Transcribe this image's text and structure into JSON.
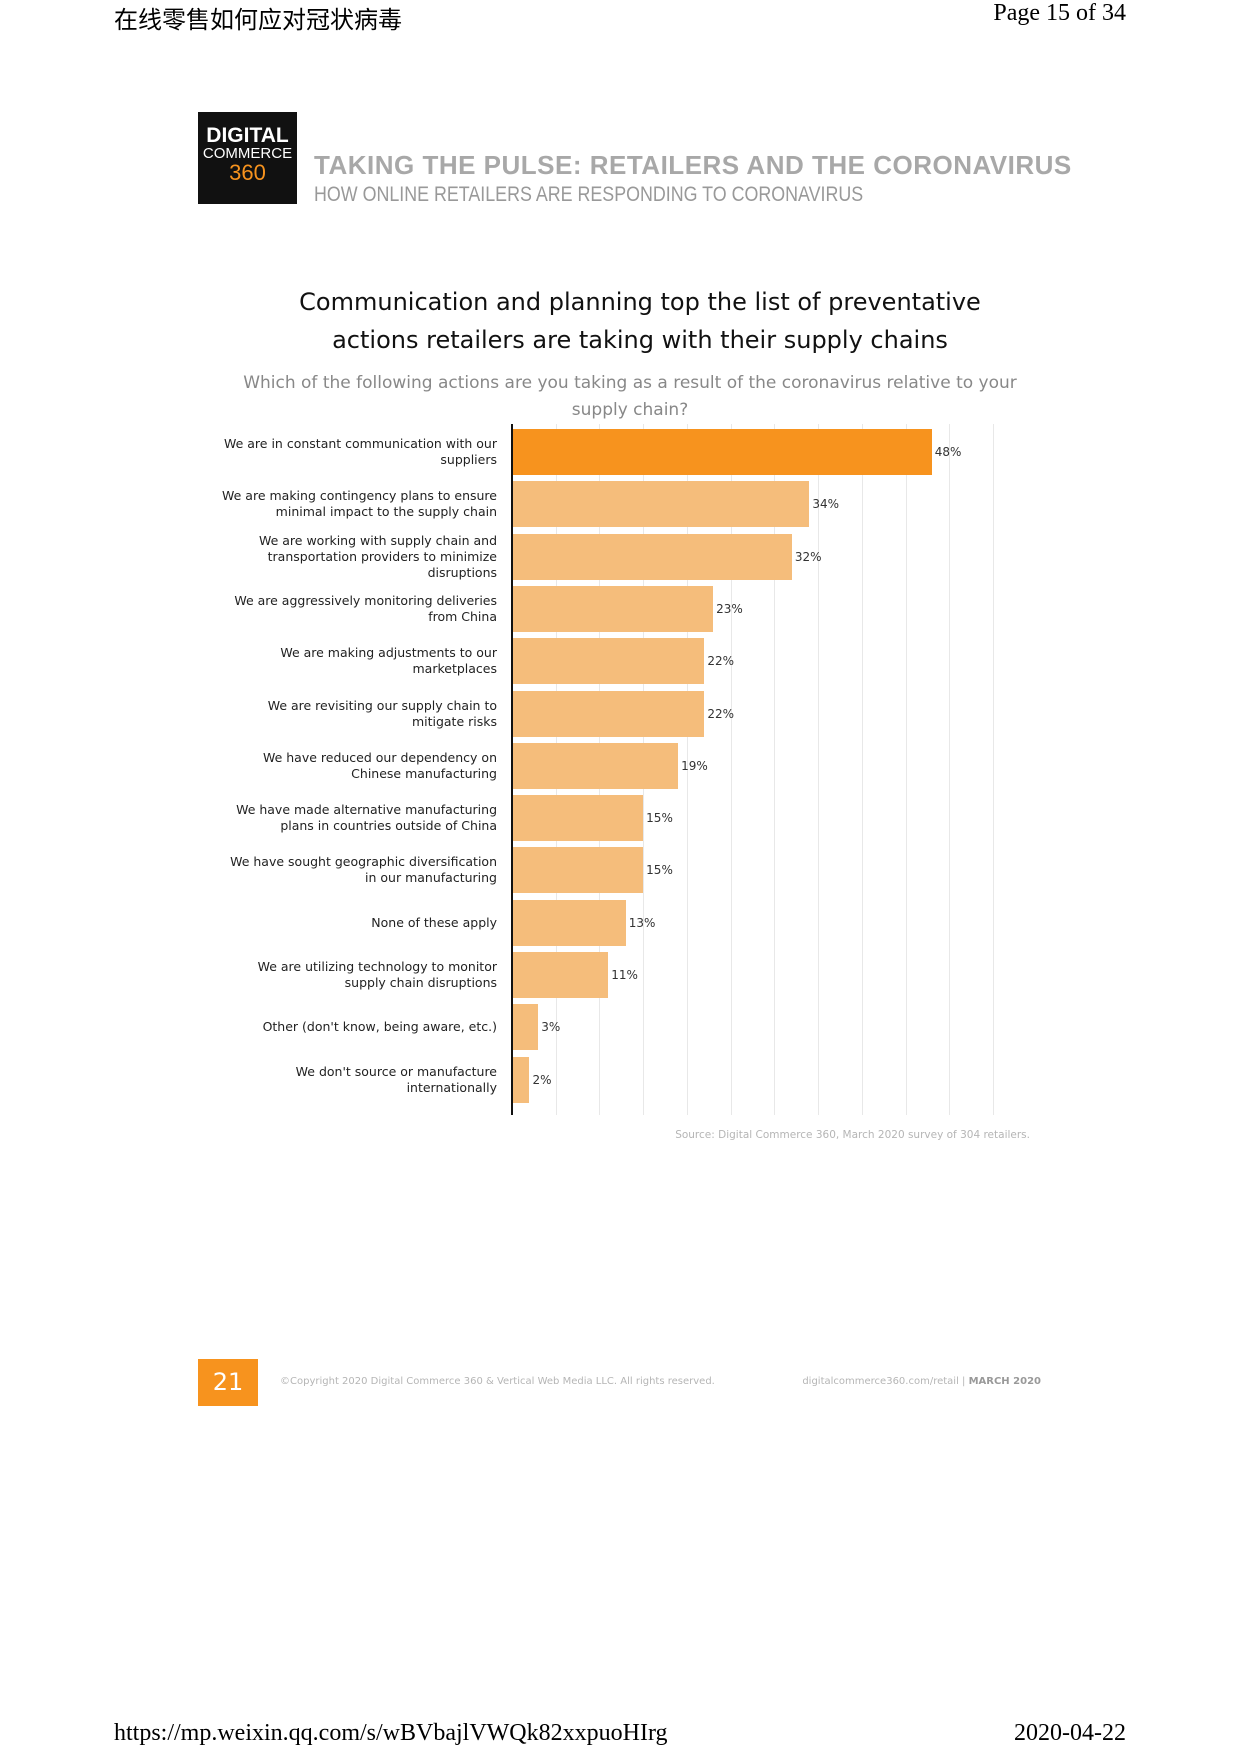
{
  "header": {
    "doc_title": "在线零售如何应对冠状病毒",
    "page": "Page 15 of 34"
  },
  "logo": {
    "line1": "DIGITAL",
    "line2": "COMMERCE",
    "line3": "360"
  },
  "banner": {
    "title": "TAKING THE PULSE: RETAILERS AND THE CORONAVIRUS",
    "subtitle": "HOW ONLINE RETAILERS ARE RESPONDING TO CORONAVIRUS"
  },
  "chart_data": {
    "type": "hbar",
    "title": "Communication and planning top the list of preventative actions retailers are taking with their supply chains",
    "subtitle": "Which of the following actions are you taking as a result of the coronavirus relative to your supply chain?",
    "categories": [
      "We are in constant communication with our suppliers",
      "We are making contingency plans to ensure minimal impact to the supply chain",
      "We are working with supply chain and transportation providers to minimize disruptions",
      "We are aggressively monitoring deliveries from China",
      "We are making adjustments to our marketplaces",
      "We are revisiting our supply chain to mitigate risks",
      "We have reduced our dependency on Chinese manufacturing",
      "We have made alternative manufacturing plans in countries outside of China",
      "We have sought geographic diversification in our manufacturing",
      "None of these apply",
      "We are utilizing technology to monitor supply chain disruptions",
      "Other (don't know, being aware, etc.)",
      "We don't source or manufacture internationally"
    ],
    "values": [
      48,
      34,
      32,
      23,
      22,
      22,
      19,
      15,
      15,
      13,
      11,
      3,
      2
    ],
    "value_labels": [
      "48%",
      "34%",
      "32%",
      "23%",
      "22%",
      "22%",
      "19%",
      "15%",
      "15%",
      "13%",
      "11%",
      "3%",
      "2%"
    ],
    "colors": [
      "#f7931e",
      "#f5bd7b",
      "#f5bd7b",
      "#f5bd7b",
      "#f5bd7b",
      "#f5bd7b",
      "#f5bd7b",
      "#f5bd7b",
      "#f5bd7b",
      "#f5bd7b",
      "#f5bd7b",
      "#f5bd7b",
      "#f5bd7b"
    ],
    "xlim": [
      0,
      55
    ],
    "xticks": [
      0,
      5,
      10,
      15,
      20,
      25,
      30,
      35,
      40,
      45,
      50,
      55
    ],
    "grid": true,
    "source": "Source: Digital Commerce 360, March 2020 survey of 304 retailers."
  },
  "footer": {
    "page_number": "21",
    "copyright": "©Copyright 2020 Digital Commerce 360 & Vertical Web Media LLC. All rights reserved.",
    "site": "digitalcommerce360.com/retail",
    "date": "MARCH 2020"
  },
  "page_footer": {
    "url": "https://mp.weixin.qq.com/s/wBVbajlVWQk82xxpuoHIrg",
    "date": "2020-04-22"
  }
}
